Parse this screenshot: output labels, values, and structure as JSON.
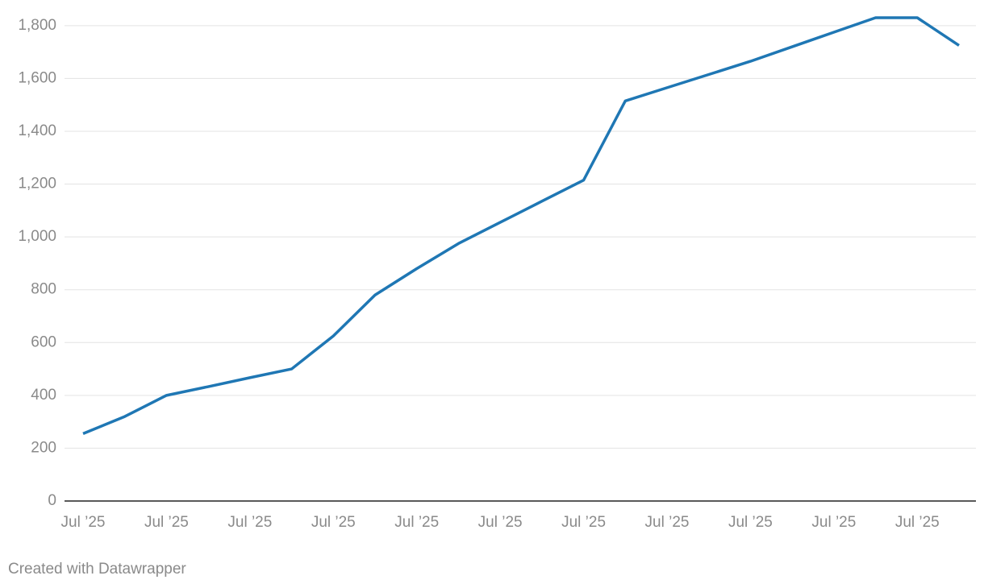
{
  "chart_data": {
    "type": "line",
    "categories": [
      "Jul ’25",
      null,
      "Jul ’25",
      null,
      "Jul ’25",
      null,
      "Jul ’25",
      null,
      "Jul ’25",
      null,
      "Jul ’25",
      null,
      "Jul ’25",
      null,
      "Jul ’25",
      null,
      "Jul ’25",
      null,
      "Jul ’25",
      null,
      "Jul ’25",
      null
    ],
    "series": [
      {
        "color": "#1f77b4",
        "values": [
          255,
          320,
          400,
          433,
          467,
          500,
          625,
          780,
          880,
          975,
          1055,
          1135,
          1215,
          1515,
          1565,
          1615,
          1665,
          1720,
          1775,
          1830,
          1830,
          1725
        ]
      }
    ],
    "ylim": [
      0,
      1830
    ],
    "yticks": [
      0,
      200,
      400,
      600,
      800,
      {
        "value": 1000,
        "label": "1,000"
      },
      {
        "value": 1200,
        "label": "1,200"
      },
      {
        "value": 1400,
        "label": "1,400"
      },
      {
        "value": 1600,
        "label": "1,600"
      },
      {
        "value": 1800,
        "label": "1,800"
      }
    ],
    "grid": true,
    "footer": "Created with Datawrapper"
  }
}
